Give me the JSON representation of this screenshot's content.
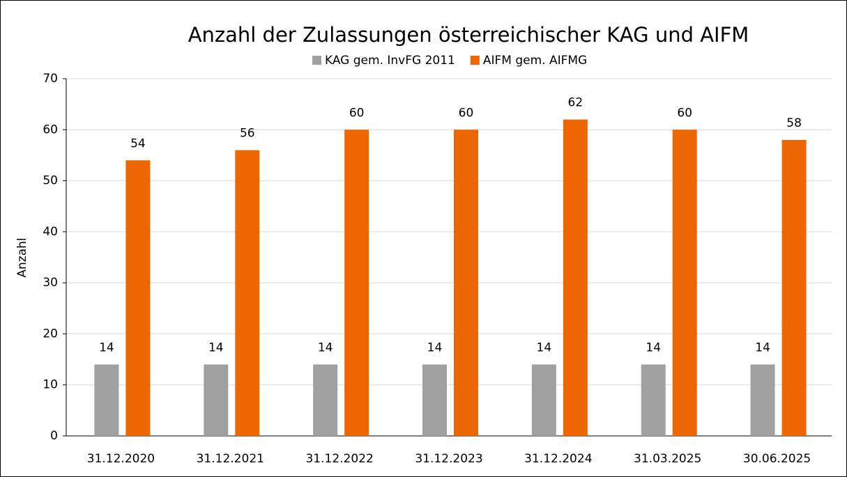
{
  "chart_data": {
    "type": "bar",
    "title": "Anzahl der Zulassungen österreichischer KAG und AIFM",
    "y_label": "Anzahl",
    "categories": [
      "31.12.2020",
      "31.12.2021",
      "31.12.2022",
      "31.12.2023",
      "31.12.2024",
      "31.03.2025",
      "30.06.2025"
    ],
    "series": [
      {
        "name": "KAG gem. InvFG 2011",
        "color": "#a0a0a0",
        "values": [
          14,
          14,
          14,
          14,
          14,
          14,
          14
        ]
      },
      {
        "name": "AIFM gem. AIFMG",
        "color": "#ec6602",
        "values": [
          54,
          56,
          60,
          60,
          62,
          60,
          58
        ]
      }
    ],
    "ylim": [
      0,
      70
    ],
    "yticks": [
      0,
      10,
      20,
      30,
      40,
      50,
      60,
      70
    ],
    "grid": true,
    "legend": "top"
  }
}
